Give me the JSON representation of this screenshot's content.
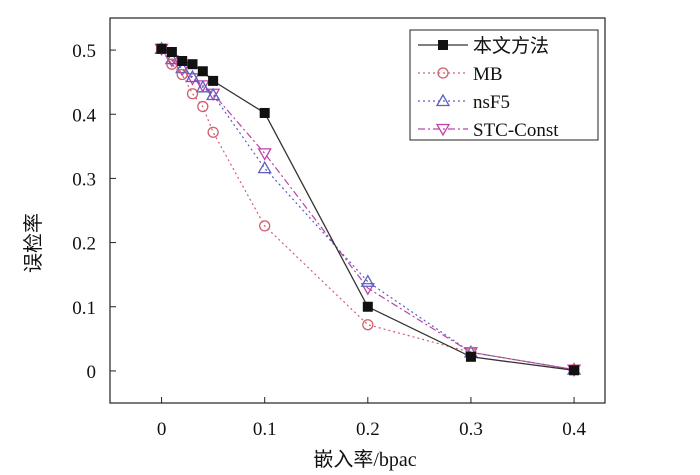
{
  "chart_data": {
    "type": "line",
    "title": "",
    "xlabel": "嵌入率/bpac",
    "ylabel": "误检率",
    "xlim": [
      -0.05,
      0.43
    ],
    "ylim": [
      -0.05,
      0.55
    ],
    "xticks": [
      0,
      0.1,
      0.2,
      0.3,
      0.4
    ],
    "xtick_labels": [
      "0",
      "0.1",
      "0.2",
      "0.3",
      "0.4"
    ],
    "yticks": [
      0,
      0.1,
      0.2,
      0.3,
      0.4,
      0.5
    ],
    "ytick_labels": [
      "0",
      "0.1",
      "0.2",
      "0.3",
      "0.4",
      "0.5"
    ],
    "grid": false,
    "legend_position": "top-right",
    "series": [
      {
        "name": "本文方法",
        "color": "#333333",
        "line_style": "solid",
        "marker": "filled-square",
        "x": [
          0,
          0.01,
          0.02,
          0.03,
          0.04,
          0.05,
          0.1,
          0.2,
          0.3,
          0.4
        ],
        "y": [
          0.502,
          0.497,
          0.483,
          0.478,
          0.467,
          0.452,
          0.402,
          0.1,
          0.022,
          0.001
        ]
      },
      {
        "name": "MB",
        "color": "#d0606e",
        "line_style": "dotted",
        "marker": "open-circle",
        "x": [
          0,
          0.01,
          0.02,
          0.03,
          0.04,
          0.05,
          0.1,
          0.2,
          0.3,
          0.4
        ],
        "y": [
          0.502,
          0.478,
          0.462,
          0.432,
          0.412,
          0.372,
          0.226,
          0.072,
          0.029,
          0.002
        ]
      },
      {
        "name": "nsF5",
        "color": "#5a5fc0",
        "line_style": "dotted",
        "marker": "open-triangle",
        "x": [
          0,
          0.01,
          0.02,
          0.03,
          0.04,
          0.05,
          0.1,
          0.2,
          0.3,
          0.4
        ],
        "y": [
          0.502,
          0.486,
          0.472,
          0.458,
          0.442,
          0.43,
          0.316,
          0.139,
          0.029,
          0.002
        ]
      },
      {
        "name": "STC-Const",
        "color": "#c040a8",
        "line_style": "dashdot",
        "marker": "open-down-triangle",
        "x": [
          0,
          0.01,
          0.02,
          0.03,
          0.04,
          0.05,
          0.1,
          0.2,
          0.3,
          0.4
        ],
        "y": [
          0.502,
          0.484,
          0.47,
          0.456,
          0.445,
          0.432,
          0.339,
          0.129,
          0.029,
          0.002
        ]
      }
    ]
  }
}
